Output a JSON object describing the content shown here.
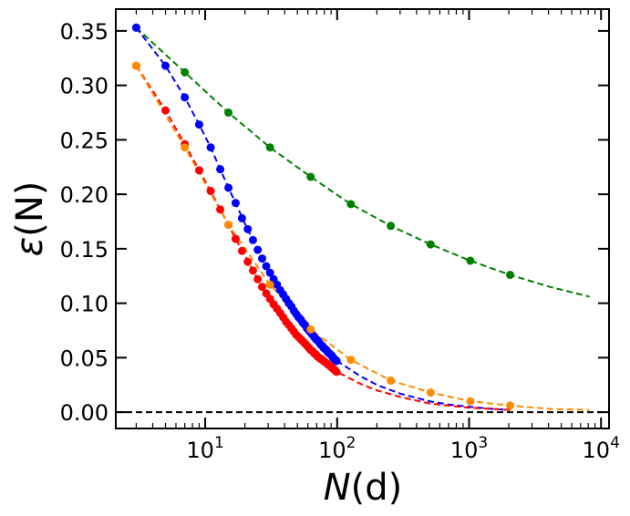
{
  "chart_data": {
    "type": "line",
    "title": "",
    "xlabel_math": "N",
    "xlabel_rest": "(d)",
    "ylabel_math": "ε",
    "ylabel_rest": "(N)",
    "xscale": "log",
    "xlim": [
      2.1,
      11500
    ],
    "ylim": [
      -0.015,
      0.37
    ],
    "yticks": [
      0.0,
      0.05,
      0.1,
      0.15,
      0.2,
      0.25,
      0.3,
      0.35
    ],
    "ytick_labels": [
      "0.00",
      "0.05",
      "0.10",
      "0.15",
      "0.20",
      "0.25",
      "0.30",
      "0.35"
    ],
    "xticks": [
      10,
      100,
      1000,
      10000
    ],
    "xtick_bases": [
      "10",
      "10",
      "10",
      "10"
    ],
    "xtick_exps": [
      "1",
      "2",
      "3",
      "4"
    ],
    "reference_line": {
      "y": 0.0,
      "color": "#000000",
      "style": "dashed"
    },
    "series": [
      {
        "name": "green",
        "color": "#008000",
        "points_x": [
          3,
          7,
          15,
          31,
          63,
          127,
          255,
          511,
          1023,
          2047
        ],
        "points_y": [
          0.353,
          0.312,
          0.275,
          0.243,
          0.216,
          0.191,
          0.171,
          0.154,
          0.139,
          0.126
        ],
        "fit_x": [
          3,
          7,
          15,
          31,
          63,
          127,
          255,
          511,
          1023,
          2047,
          4095,
          8191
        ],
        "fit_y": [
          0.353,
          0.312,
          0.275,
          0.243,
          0.216,
          0.191,
          0.171,
          0.154,
          0.139,
          0.126,
          0.115,
          0.106
        ]
      },
      {
        "name": "blue",
        "color": "#0000ff",
        "points_x": [
          3,
          5,
          7,
          9,
          11,
          13,
          15,
          17,
          19,
          21,
          23,
          25,
          27,
          29,
          31,
          33,
          35,
          37,
          39,
          41,
          43,
          45,
          47,
          49,
          51,
          53,
          55,
          57,
          59,
          61,
          63,
          65,
          67,
          69,
          71,
          73,
          75,
          77,
          79,
          81,
          83,
          85,
          87,
          89,
          91,
          93,
          95,
          97,
          99
        ],
        "points_y": [
          0.353,
          0.318,
          0.289,
          0.264,
          0.243,
          0.223,
          0.206,
          0.192,
          0.178,
          0.168,
          0.158,
          0.149,
          0.141,
          0.134,
          0.128,
          0.122,
          0.117,
          0.112,
          0.108,
          0.104,
          0.1,
          0.097,
          0.093,
          0.09,
          0.087,
          0.085,
          0.082,
          0.08,
          0.077,
          0.075,
          0.073,
          0.071,
          0.069,
          0.067,
          0.066,
          0.064,
          0.062,
          0.061,
          0.059,
          0.058,
          0.057,
          0.055,
          0.054,
          0.053,
          0.052,
          0.05,
          0.049,
          0.048,
          0.047
        ],
        "fit_x": [
          3,
          5,
          7,
          9,
          11,
          13,
          15,
          17,
          20,
          25,
          30,
          40,
          50,
          60,
          70,
          80,
          90,
          100,
          150,
          200,
          300,
          500,
          700,
          1000,
          1500,
          2048
        ],
        "fit_y": [
          0.353,
          0.318,
          0.289,
          0.264,
          0.243,
          0.223,
          0.206,
          0.192,
          0.173,
          0.149,
          0.129,
          0.103,
          0.087,
          0.075,
          0.066,
          0.059,
          0.052,
          0.047,
          0.033,
          0.025,
          0.017,
          0.01,
          0.007,
          0.005,
          0.003,
          0.002
        ]
      },
      {
        "name": "red",
        "color": "#ff0000",
        "points_x": [
          3,
          5,
          7,
          9,
          11,
          13,
          15,
          17,
          19,
          21,
          23,
          25,
          27,
          29,
          31,
          33,
          35,
          37,
          39,
          41,
          43,
          45,
          47,
          49,
          51,
          53,
          55,
          57,
          59,
          61,
          63,
          65,
          67,
          69,
          71,
          73,
          75,
          77,
          79,
          81,
          83,
          85,
          87,
          89,
          91,
          93,
          95,
          97,
          99
        ],
        "points_y": [
          0.318,
          0.277,
          0.246,
          0.222,
          0.203,
          0.186,
          0.172,
          0.159,
          0.148,
          0.138,
          0.13,
          0.122,
          0.115,
          0.109,
          0.104,
          0.099,
          0.095,
          0.091,
          0.087,
          0.083,
          0.08,
          0.077,
          0.074,
          0.071,
          0.069,
          0.067,
          0.065,
          0.063,
          0.061,
          0.059,
          0.057,
          0.056,
          0.054,
          0.053,
          0.051,
          0.05,
          0.049,
          0.048,
          0.047,
          0.046,
          0.045,
          0.044,
          0.043,
          0.042,
          0.041,
          0.04,
          0.039,
          0.038,
          0.037
        ],
        "fit_x": [
          3,
          5,
          7,
          9,
          11,
          13,
          15,
          17,
          20,
          25,
          30,
          40,
          50,
          60,
          70,
          80,
          90,
          100,
          150,
          200,
          300,
          500,
          700,
          1000,
          1500,
          2048
        ],
        "fit_y": [
          0.318,
          0.277,
          0.246,
          0.222,
          0.203,
          0.186,
          0.172,
          0.159,
          0.144,
          0.122,
          0.107,
          0.085,
          0.07,
          0.06,
          0.052,
          0.046,
          0.041,
          0.037,
          0.026,
          0.02,
          0.014,
          0.008,
          0.006,
          0.004,
          0.003,
          0.002
        ]
      },
      {
        "name": "orange",
        "color": "#ff8c00",
        "points_x": [
          3,
          7,
          15,
          31,
          63,
          127,
          255,
          511,
          1023,
          2047
        ],
        "points_y": [
          0.318,
          0.243,
          0.172,
          0.117,
          0.076,
          0.048,
          0.029,
          0.018,
          0.01,
          0.006
        ],
        "fit_x": [
          3,
          7,
          15,
          31,
          63,
          127,
          255,
          511,
          1023,
          2047,
          4095,
          8191
        ],
        "fit_y": [
          0.318,
          0.243,
          0.172,
          0.117,
          0.076,
          0.048,
          0.029,
          0.018,
          0.01,
          0.006,
          0.003,
          0.002
        ]
      }
    ]
  }
}
